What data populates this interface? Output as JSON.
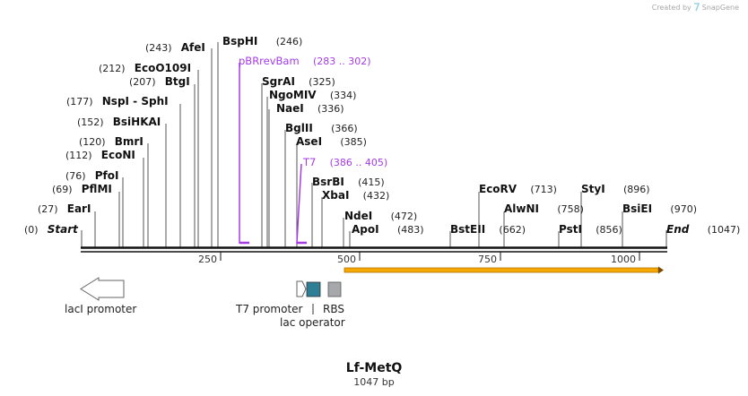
{
  "credit": {
    "prefix": "Created by",
    "brand": "SnapGene"
  },
  "sequence": {
    "name": "Lf-MetQ",
    "length_label": "1047 bp",
    "length": 1047
  },
  "sites": [
    {
      "pos": "(0)",
      "name": "Start"
    },
    {
      "pos": "(27)",
      "name": "EarI"
    },
    {
      "pos": "(69)",
      "name": "PflMI"
    },
    {
      "pos": "(76)",
      "name": "PfoI"
    },
    {
      "pos": "(112)",
      "name": "EcoNI"
    },
    {
      "pos": "(120)",
      "name": "BmrI"
    },
    {
      "pos": "(152)",
      "name": "BsiHKAI"
    },
    {
      "pos": "(177)",
      "name": "NspI - SphI"
    },
    {
      "pos": "(207)",
      "name": "BtgI"
    },
    {
      "pos": "(212)",
      "name": "EcoO109I"
    },
    {
      "pos": "(243)",
      "name": "AfeI"
    },
    {
      "pos": "(246)",
      "name": "BspHI"
    },
    {
      "pos": "(325)",
      "name": "SgrAI"
    },
    {
      "pos": "(334)",
      "name": "NgoMIV"
    },
    {
      "pos": "(336)",
      "name": "NaeI"
    },
    {
      "pos": "(366)",
      "name": "BglII"
    },
    {
      "pos": "(385)",
      "name": "AseI"
    },
    {
      "pos": "(415)",
      "name": "BsrBI"
    },
    {
      "pos": "(432)",
      "name": "XbaI"
    },
    {
      "pos": "(472)",
      "name": "NdeI"
    },
    {
      "pos": "(483)",
      "name": "ApoI"
    },
    {
      "pos": "(662)",
      "name": "BstEII"
    },
    {
      "pos": "(713)",
      "name": "EcoRV"
    },
    {
      "pos": "(758)",
      "name": "AlwNI"
    },
    {
      "pos": "(856)",
      "name": "PstI"
    },
    {
      "pos": "(896)",
      "name": "StyI"
    },
    {
      "pos": "(970)",
      "name": "BsiEI"
    },
    {
      "pos": "(1047)",
      "name": "End"
    }
  ],
  "primers": [
    {
      "name": "pBRrevBam",
      "range": "(283 .. 302)"
    },
    {
      "name": "T7",
      "range": "(386 .. 405)"
    }
  ],
  "ruler": [
    "250",
    "500",
    "750",
    "1000"
  ],
  "features": {
    "lacI_promoter": "lacI promoter",
    "T7_promoter": "T7 promoter",
    "lac_operator": "lac operator",
    "RBS": "RBS"
  },
  "colors": {
    "primer": "#a53be6",
    "orf_bar": "#f6a800",
    "lac_operator": "#2e7f96",
    "rbs": "#a6a8ab",
    "backbone": "#111111"
  }
}
